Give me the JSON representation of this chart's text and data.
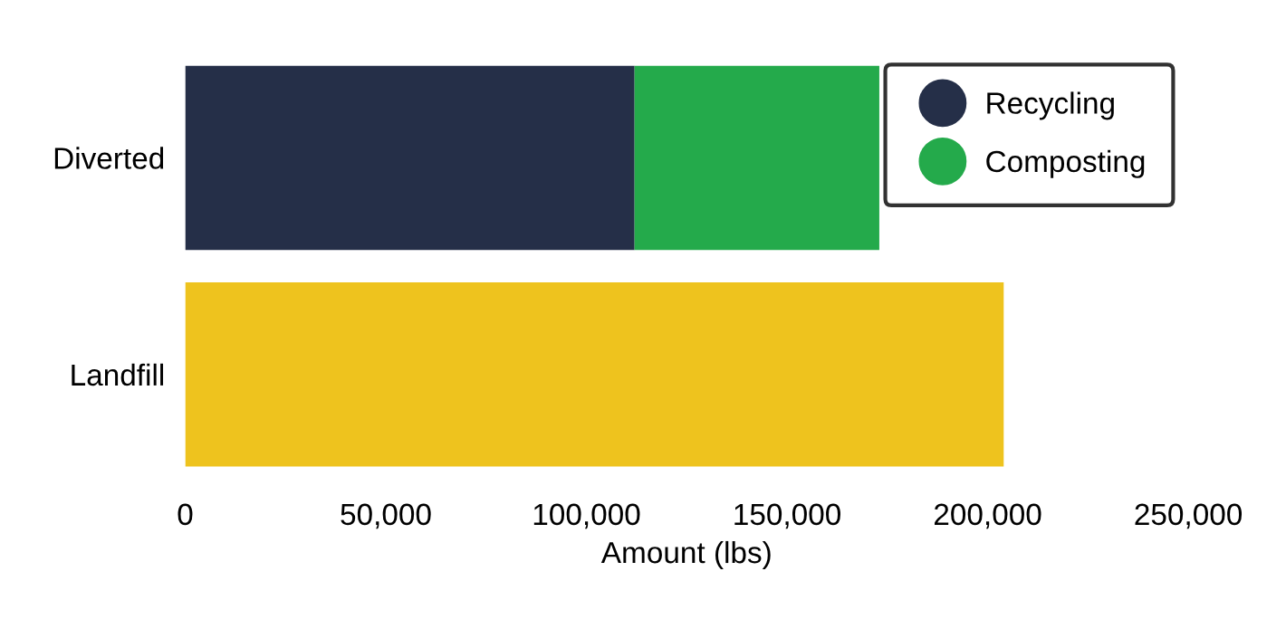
{
  "chart_data": {
    "type": "bar",
    "orientation": "horizontal",
    "stacked": true,
    "xlabel": "Amount (lbs)",
    "categories": [
      "Diverted",
      "Landfill"
    ],
    "series": [
      {
        "name": "Recycling",
        "color": "#252f48",
        "values": [
          112000,
          null
        ]
      },
      {
        "name": "Composting",
        "color": "#24aa4b",
        "values": [
          61000,
          null
        ]
      },
      {
        "color": "#eec31e",
        "values": [
          null,
          204000
        ]
      }
    ],
    "xlim": [
      0,
      250000
    ],
    "xticks": [
      {
        "value": 0,
        "label": "0"
      },
      {
        "value": 50000,
        "label": "50,000"
      },
      {
        "value": 100000,
        "label": "100,000"
      },
      {
        "value": 150000,
        "label": "150,000"
      },
      {
        "value": 200000,
        "label": "200,000"
      },
      {
        "value": 250000,
        "label": "250,000"
      }
    ],
    "legend": "top right",
    "grid": false
  }
}
